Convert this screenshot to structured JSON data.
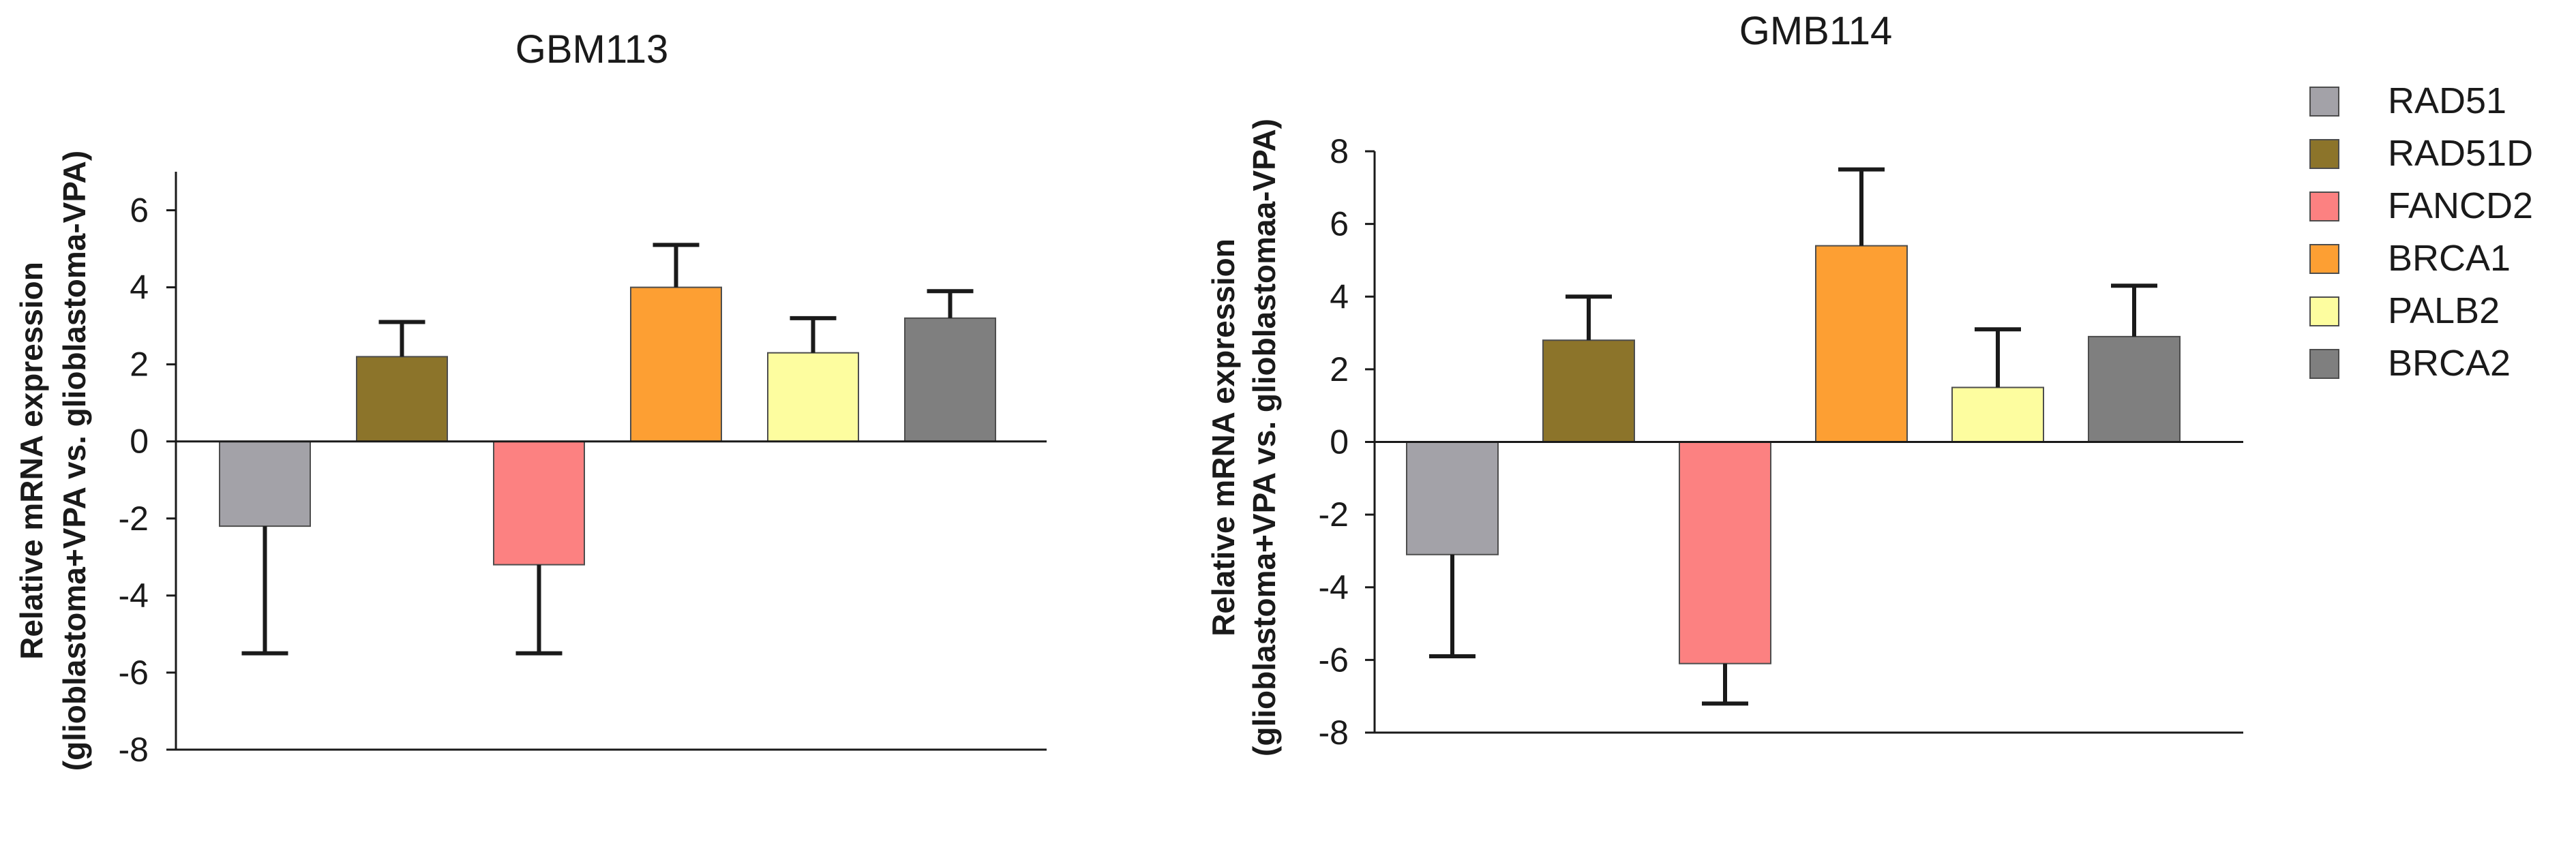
{
  "chart_data": [
    {
      "type": "bar",
      "title": "GBM113",
      "ylabel_line1": "Relative mRNA expression",
      "ylabel_line2": "(glioblastoma+VPA vs. glioblastoma-VPA)",
      "xlabel": "",
      "ylim": [
        -8,
        7
      ],
      "yticks": [
        -8,
        -6,
        -4,
        -2,
        0,
        2,
        4,
        6
      ],
      "categories": [
        "RAD51",
        "RAD51D",
        "FANCD2",
        "BRCA1",
        "PALB2",
        "BRCA2"
      ],
      "values": [
        -2.2,
        2.2,
        -3.2,
        4.0,
        2.3,
        3.2
      ],
      "errors": [
        3.3,
        0.9,
        2.3,
        1.1,
        0.9,
        0.7
      ]
    },
    {
      "type": "bar",
      "title": "GMB114",
      "ylabel_line1": "Relative mRNA expression",
      "ylabel_line2": "(glioblastoma+VPA vs. glioblastomaa-VPA)",
      "xlabel": "",
      "ylim": [
        -8,
        8
      ],
      "yticks": [
        -8,
        -6,
        -4,
        -2,
        0,
        2,
        4,
        6,
        8
      ],
      "categories": [
        "RAD51",
        "RAD51D",
        "FANCD2",
        "BRCA1",
        "PALB2",
        "BRCA2"
      ],
      "values": [
        -3.1,
        2.8,
        -6.1,
        5.4,
        1.5,
        2.9
      ],
      "errors": [
        2.8,
        1.2,
        1.1,
        2.1,
        1.6,
        1.4
      ]
    }
  ],
  "legend": {
    "placement": "right",
    "items": [
      {
        "label": "RAD51",
        "color": "#a3a2a8"
      },
      {
        "label": "RAD51D",
        "color": "#8c742a"
      },
      {
        "label": "FANCD2",
        "color": "#fc8181"
      },
      {
        "label": "BRCA1",
        "color": "#fd9f33"
      },
      {
        "label": "PALB2",
        "color": "#fdfd9f"
      },
      {
        "label": "BRCA2",
        "color": "#7f7f7f"
      }
    ]
  }
}
